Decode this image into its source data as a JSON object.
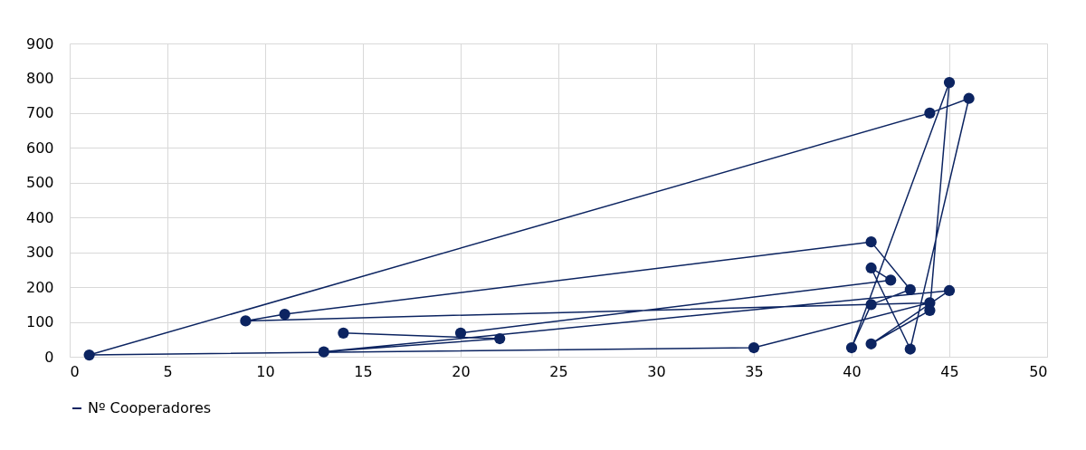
{
  "chart_data": {
    "type": "line",
    "x": [
      20,
      42,
      41,
      43,
      46,
      44,
      1,
      35,
      44,
      9,
      11,
      41,
      43,
      41,
      40,
      45,
      44,
      41,
      45,
      13,
      22,
      14
    ],
    "series": [
      {
        "name": "Nº Cooperadores",
        "color": "#0c2461",
        "values": [
          68,
          220,
          255,
          22,
          742,
          700,
          5,
          26,
          155,
          103,
          122,
          330,
          193,
          150,
          26,
          788,
          133,
          37,
          190,
          14,
          52,
          68
        ]
      }
    ],
    "xlim": [
      0,
      50
    ],
    "xticks": [
      0,
      5,
      10,
      15,
      20,
      25,
      30,
      35,
      40,
      45,
      50
    ],
    "ylim": [
      0,
      900
    ],
    "yticks": [
      0,
      100,
      200,
      300,
      400,
      500,
      600,
      700,
      800,
      900
    ],
    "grid": true,
    "legend": "bottom",
    "marker": "circle",
    "line_style": "solid"
  }
}
